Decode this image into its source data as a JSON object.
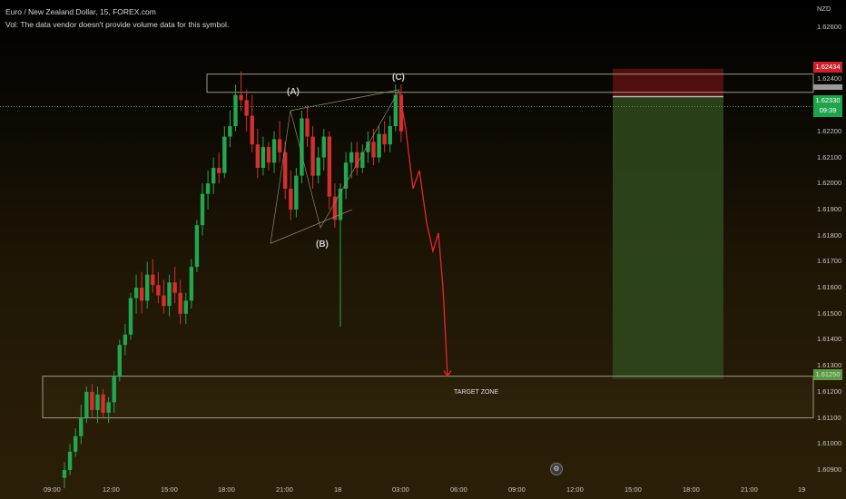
{
  "header": {
    "symbol_line": "Euro / New Zealand Dollar, 15, FOREX.com",
    "volume_line": "Vol: The data vendor doesn't provide volume data for this symbol."
  },
  "currency_label": "NZD",
  "price_axis": [
    "1.62600",
    "1.62400",
    "1.62300",
    "1.62200",
    "1.62100",
    "1.62000",
    "1.61900",
    "1.61800",
    "1.61700",
    "1.61600",
    "1.61500",
    "1.61400",
    "1.61300",
    "1.61200",
    "1.61100",
    "1.61000",
    "1.60900"
  ],
  "time_axis": [
    "09:00",
    "12:00",
    "15:00",
    "18:00",
    "21:00",
    "18",
    "03:00",
    "06:00",
    "09:00",
    "12:00",
    "15:00",
    "18:00",
    "21:00",
    "19"
  ],
  "price_tags": {
    "stop": "1.62434",
    "current": "1.62330",
    "countdown": "09:39",
    "target": "1.61250"
  },
  "wave_labels": {
    "a": "(A)",
    "b": "(B)",
    "c": "(C)"
  },
  "target_zone_label": "TARGET ZONE",
  "colors": {
    "up": "#22a650",
    "down": "#d32f2f",
    "projection": "#e8262c",
    "zone_border": "#9c9b86",
    "stop_fill": "#5a1010",
    "profit_fill": "#2f4a1d"
  },
  "settings_icon": "gear-icon",
  "chart_data": {
    "type": "candlestick",
    "symbol": "Euro / New Zealand Dollar",
    "interval": "15",
    "ylim": [
      1.609,
      1.626
    ],
    "stop_level": 1.62434,
    "entry_level": 1.6233,
    "target_level": 1.6125,
    "target_zone": [
      1.611,
      1.6126
    ],
    "resistance_zone": [
      1.6235,
      1.6242
    ],
    "waves": [
      {
        "label": "(A)",
        "price": 1.6228
      },
      {
        "label": "(B)",
        "price": 1.6183
      },
      {
        "label": "(C)",
        "price": 1.6235
      }
    ],
    "projection_path": [
      1.6235,
      1.6221,
      1.6198,
      1.6205,
      1.6185,
      1.6174,
      1.6181,
      1.616,
      1.6126
    ],
    "candles": [
      [
        1.6087,
        1.6093,
        1.6083,
        1.609
      ],
      [
        1.609,
        1.61,
        1.6088,
        1.6097
      ],
      [
        1.6097,
        1.6106,
        1.6095,
        1.6103
      ],
      [
        1.6103,
        1.6115,
        1.61,
        1.611
      ],
      [
        1.611,
        1.6122,
        1.6108,
        1.612
      ],
      [
        1.612,
        1.6123,
        1.611,
        1.6113
      ],
      [
        1.6113,
        1.6122,
        1.6108,
        1.6119
      ],
      [
        1.6119,
        1.6121,
        1.611,
        1.6112
      ],
      [
        1.6112,
        1.6118,
        1.6108,
        1.6116
      ],
      [
        1.6116,
        1.6128,
        1.6112,
        1.6126
      ],
      [
        1.6126,
        1.614,
        1.6124,
        1.6138
      ],
      [
        1.6138,
        1.6146,
        1.6134,
        1.6142
      ],
      [
        1.6142,
        1.6158,
        1.614,
        1.6156
      ],
      [
        1.6156,
        1.6165,
        1.615,
        1.616
      ],
      [
        1.616,
        1.6166,
        1.615,
        1.6155
      ],
      [
        1.6155,
        1.617,
        1.6152,
        1.6165
      ],
      [
        1.6165,
        1.6171,
        1.6158,
        1.6161
      ],
      [
        1.6161,
        1.6166,
        1.6154,
        1.6157
      ],
      [
        1.6157,
        1.6163,
        1.615,
        1.6153
      ],
      [
        1.6153,
        1.6165,
        1.6149,
        1.6162
      ],
      [
        1.6162,
        1.6168,
        1.6154,
        1.6158
      ],
      [
        1.6158,
        1.6163,
        1.6146,
        1.615
      ],
      [
        1.615,
        1.6158,
        1.6146,
        1.6155
      ],
      [
        1.6155,
        1.6171,
        1.6152,
        1.6168
      ],
      [
        1.6168,
        1.6186,
        1.6166,
        1.6184
      ],
      [
        1.6184,
        1.62,
        1.618,
        1.6196
      ],
      [
        1.6196,
        1.6205,
        1.619,
        1.62
      ],
      [
        1.62,
        1.621,
        1.6196,
        1.6206
      ],
      [
        1.6206,
        1.6212,
        1.62,
        1.6204
      ],
      [
        1.6204,
        1.6222,
        1.6202,
        1.6218
      ],
      [
        1.6218,
        1.6228,
        1.6214,
        1.6222
      ],
      [
        1.6222,
        1.6238,
        1.622,
        1.6234
      ],
      [
        1.6234,
        1.6243,
        1.6228,
        1.6232
      ],
      [
        1.6232,
        1.6236,
        1.622,
        1.6226
      ],
      [
        1.6226,
        1.6234,
        1.6212,
        1.6215
      ],
      [
        1.6215,
        1.6221,
        1.6202,
        1.6206
      ],
      [
        1.6206,
        1.6218,
        1.6203,
        1.6214
      ],
      [
        1.6214,
        1.6216,
        1.6205,
        1.6208
      ],
      [
        1.6208,
        1.622,
        1.6204,
        1.6217
      ],
      [
        1.6217,
        1.6224,
        1.6208,
        1.6212
      ],
      [
        1.6212,
        1.6216,
        1.6194,
        1.6198
      ],
      [
        1.6198,
        1.6205,
        1.6186,
        1.619
      ],
      [
        1.619,
        1.6206,
        1.6187,
        1.6203
      ],
      [
        1.6203,
        1.6228,
        1.62,
        1.6225
      ],
      [
        1.6225,
        1.623,
        1.6214,
        1.6218
      ],
      [
        1.6218,
        1.6222,
        1.6198,
        1.6203
      ],
      [
        1.6203,
        1.6214,
        1.62,
        1.621
      ],
      [
        1.621,
        1.6221,
        1.6205,
        1.6218
      ],
      [
        1.6218,
        1.622,
        1.619,
        1.6195
      ],
      [
        1.6195,
        1.62,
        1.6183,
        1.6186
      ],
      [
        1.6186,
        1.62,
        1.6145,
        1.6198
      ],
      [
        1.6198,
        1.6212,
        1.6194,
        1.6208
      ],
      [
        1.6208,
        1.6216,
        1.6202,
        1.6212
      ],
      [
        1.6212,
        1.6216,
        1.6203,
        1.6206
      ],
      [
        1.6206,
        1.6215,
        1.6204,
        1.6212
      ],
      [
        1.6212,
        1.622,
        1.6208,
        1.6216
      ],
      [
        1.6216,
        1.6221,
        1.6207,
        1.621
      ],
      [
        1.621,
        1.6222,
        1.6208,
        1.6219
      ],
      [
        1.6219,
        1.6224,
        1.6212,
        1.6215
      ],
      [
        1.6215,
        1.6226,
        1.6212,
        1.6222
      ],
      [
        1.6222,
        1.6238,
        1.622,
        1.6234
      ],
      [
        1.6234,
        1.6238,
        1.6216,
        1.622
      ]
    ]
  }
}
